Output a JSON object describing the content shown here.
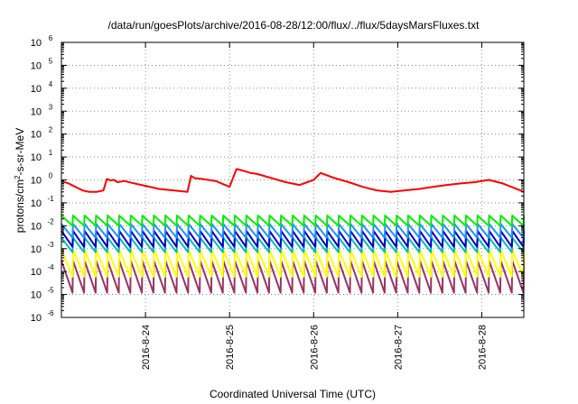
{
  "chart_data": {
    "type": "line",
    "title": "/data/run/goesPlots/archive/2016-08-28/12:00/flux/../flux/5daysMarsFluxes.txt",
    "xlabel": "Coordinated Universal Time (UTC)",
    "ylabel": {
      "pre": "protons/cm",
      "sup": "2",
      "post": "-s-sr-MeV"
    },
    "yscale": "log",
    "ylim": [
      1e-06,
      1000000.0
    ],
    "y_ticks": [
      {
        "base": "10",
        "exp": "-6"
      },
      {
        "base": "10",
        "exp": "-5"
      },
      {
        "base": "10",
        "exp": "-4"
      },
      {
        "base": "10",
        "exp": "-3"
      },
      {
        "base": "10",
        "exp": "-2"
      },
      {
        "base": "10",
        "exp": "-1"
      },
      {
        "base": "10",
        "exp": "0"
      },
      {
        "base": "10",
        "exp": "1"
      },
      {
        "base": "10",
        "exp": "2"
      },
      {
        "base": "10",
        "exp": "3"
      },
      {
        "base": "10",
        "exp": "4"
      },
      {
        "base": "10",
        "exp": "5"
      },
      {
        "base": "10",
        "exp": "6"
      }
    ],
    "xlim": [
      "2016-08-23 00:00",
      "2016-08-28 12:00"
    ],
    "x_ticks": [
      "2016-8-24",
      "2016-8-25",
      "2016-8-26",
      "2016-8-27",
      "2016-8-28"
    ],
    "grid": true,
    "series": [
      {
        "color": "#ff0000",
        "sawtooth": false,
        "x": [
          "2016-08-23 00:00",
          "2016-08-23 02:00",
          "2016-08-23 04:00",
          "2016-08-23 06:00",
          "2016-08-23 08:00",
          "2016-08-23 10:00",
          "2016-08-23 12:00",
          "2016-08-23 13:00",
          "2016-08-23 14:00",
          "2016-08-23 15:00",
          "2016-08-23 16:00",
          "2016-08-23 18:00",
          "2016-08-23 20:00",
          "2016-08-24 00:00",
          "2016-08-24 04:00",
          "2016-08-24 08:00",
          "2016-08-24 12:00",
          "2016-08-24 13:00",
          "2016-08-24 14:00",
          "2016-08-24 16:00",
          "2016-08-24 20:00",
          "2016-08-25 00:00",
          "2016-08-25 02:00",
          "2016-08-25 04:00",
          "2016-08-25 06:00",
          "2016-08-25 08:00",
          "2016-08-25 12:00",
          "2016-08-25 16:00",
          "2016-08-25 20:00",
          "2016-08-26 00:00",
          "2016-08-26 02:00",
          "2016-08-26 06:00",
          "2016-08-26 10:00",
          "2016-08-26 14:00",
          "2016-08-26 18:00",
          "2016-08-26 22:00",
          "2016-08-27 02:00",
          "2016-08-27 06:00",
          "2016-08-27 10:00",
          "2016-08-27 14:00",
          "2016-08-27 18:00",
          "2016-08-27 22:00",
          "2016-08-28 02:00",
          "2016-08-28 06:00",
          "2016-08-28 10:00",
          "2016-08-28 12:00"
        ],
        "y": [
          0.9,
          0.7,
          0.5,
          0.35,
          0.3,
          0.3,
          0.35,
          1.1,
          0.95,
          1.0,
          0.8,
          0.9,
          0.75,
          0.55,
          0.4,
          0.35,
          0.3,
          1.5,
          1.2,
          1.1,
          0.9,
          0.5,
          3.0,
          2.5,
          2.0,
          1.8,
          1.2,
          0.8,
          0.6,
          1.0,
          2.0,
          1.2,
          0.8,
          0.5,
          0.35,
          0.3,
          0.35,
          0.4,
          0.5,
          0.6,
          0.7,
          0.8,
          1.0,
          0.7,
          0.4,
          0.3
        ]
      },
      {
        "color": "#00ee00",
        "sawtooth": true,
        "count": 40,
        "high": 0.028,
        "low": 0.01
      },
      {
        "color": "#1e90ff",
        "sawtooth": true,
        "count": 40,
        "high": 0.012,
        "low": 0.003
      },
      {
        "color": "#0000cc",
        "sawtooth": true,
        "count": 40,
        "high": 0.006,
        "low": 0.0012
      },
      {
        "color": "#00bbbb",
        "sawtooth": true,
        "count": 40,
        "high": 0.003,
        "low": 0.0007
      },
      {
        "color": "#ffff00",
        "sawtooth": true,
        "count": 40,
        "high": 0.0009,
        "low": 6e-05
      },
      {
        "color": "#993366",
        "sawtooth": true,
        "count": 40,
        "high": 0.0003,
        "low": 1.2e-05
      }
    ]
  }
}
